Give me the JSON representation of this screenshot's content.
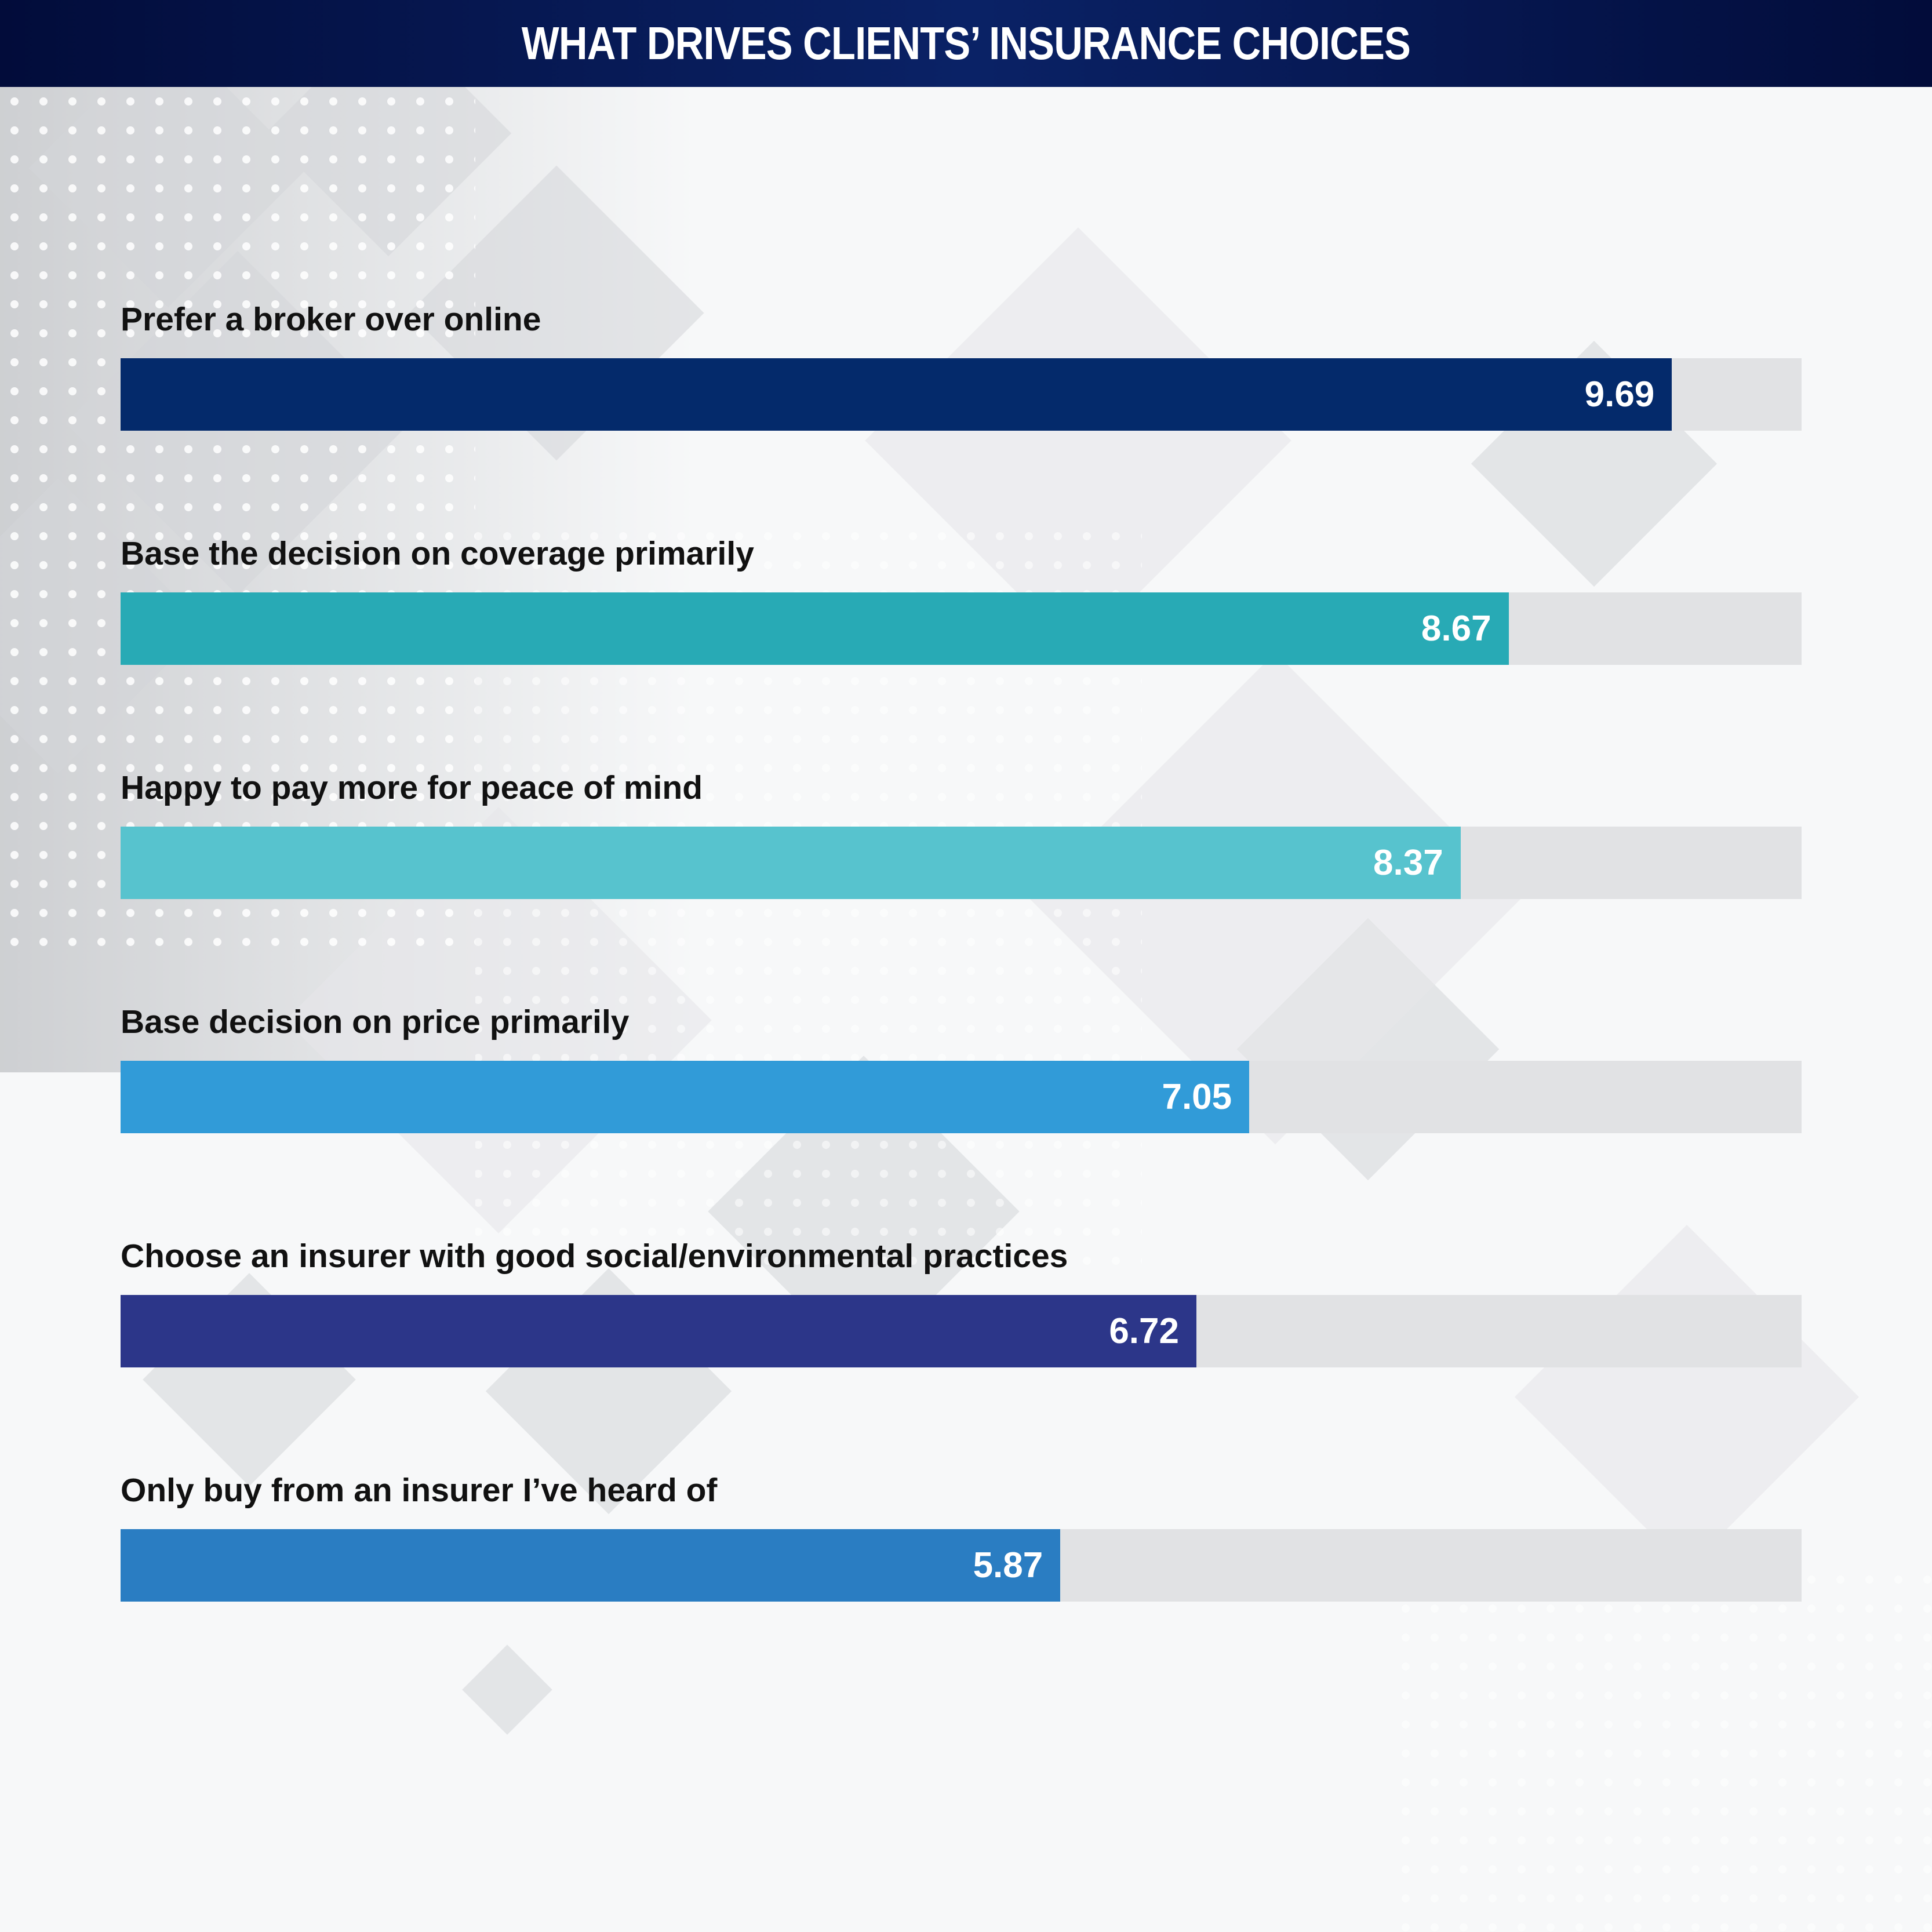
{
  "header": {
    "title": "WHAT DRIVES CLIENTS’ INSURANCE CHOICES"
  },
  "chart_data": {
    "type": "bar",
    "orientation": "horizontal",
    "title": "WHAT DRIVES CLIENTS’ INSURANCE CHOICES",
    "xlim": [
      0,
      10.5
    ],
    "grid": false,
    "categories": [
      "Prefer a broker over online",
      "Base the decision on coverage primarily",
      "Happy to pay more for peace of mind",
      "Base decision on price primarily",
      "Choose an insurer with good social/environmental practices",
      "Only buy from an insurer I’ve heard of"
    ],
    "values": [
      9.69,
      8.67,
      8.37,
      7.05,
      6.72,
      5.87
    ],
    "value_labels": [
      "9.69",
      "8.67",
      "8.37",
      "7.05",
      "6.72",
      "5.87"
    ],
    "colors": [
      "#042a6b",
      "#28aab5",
      "#57c3ce",
      "#319bd8",
      "#2c3689",
      "#2a7dc2"
    ],
    "track_color": "#e1e2e4"
  }
}
